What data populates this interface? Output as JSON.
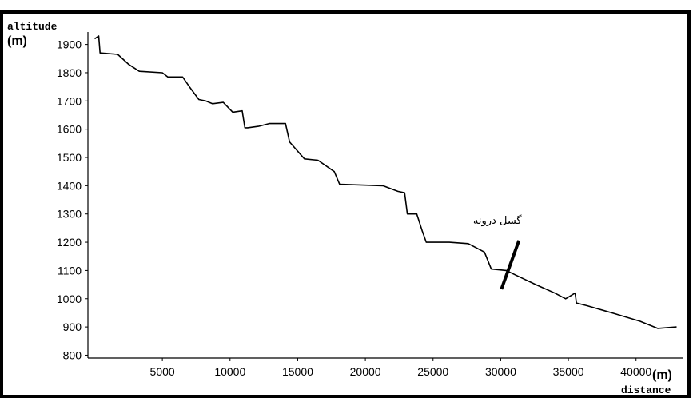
{
  "chart_data": {
    "type": "line",
    "xlabel": "distance",
    "x_unit": "(m)",
    "ylabel": "altitude",
    "y_unit": "(m)",
    "xlim": [
      -500,
      43500
    ],
    "ylim": [
      790,
      1930
    ],
    "x_ticks": [
      5000,
      10000,
      15000,
      20000,
      25000,
      30000,
      35000,
      40000
    ],
    "y_ticks": [
      800,
      900,
      1000,
      1100,
      1200,
      1300,
      1400,
      1500,
      1600,
      1700,
      1800,
      1900
    ],
    "grid": false,
    "series": [
      {
        "x": [
          0,
          300,
          400,
          1700,
          2500,
          3300,
          5000,
          5400,
          6500,
          7000,
          7700,
          8200,
          8700,
          9500,
          10200,
          10900,
          11100,
          11300,
          12100,
          12900,
          14100,
          14400,
          15500,
          16500,
          17700,
          18100,
          21300,
          22400,
          22900,
          23100,
          23800,
          24200,
          24500,
          26200,
          27600,
          28800,
          29300,
          30400,
          31500,
          32600,
          34000,
          34800,
          35500,
          35600,
          36400,
          38200,
          40300,
          41600,
          43000
        ],
        "y": [
          1920,
          1930,
          1870,
          1865,
          1830,
          1805,
          1800,
          1785,
          1785,
          1750,
          1705,
          1700,
          1690,
          1695,
          1660,
          1665,
          1605,
          1605,
          1610,
          1620,
          1620,
          1555,
          1495,
          1490,
          1450,
          1405,
          1400,
          1380,
          1375,
          1300,
          1300,
          1240,
          1200,
          1200,
          1195,
          1165,
          1105,
          1100,
          1075,
          1050,
          1020,
          1000,
          1020,
          985,
          975,
          950,
          920,
          895,
          900
        ]
      }
    ],
    "annotations": [
      {
        "text": "گسل درونه",
        "x": 30700,
        "y": 1110
      }
    ]
  }
}
